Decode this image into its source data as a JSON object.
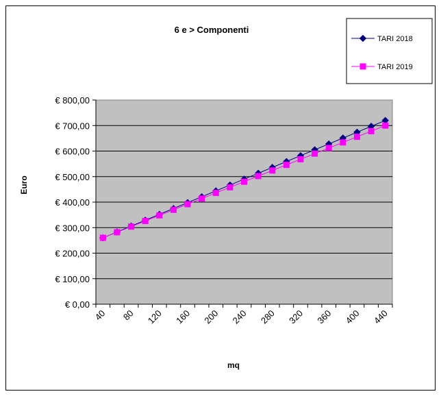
{
  "chart_data": {
    "type": "line",
    "title": "6 e > Componenti",
    "xlabel": "mq",
    "ylabel": "Euro",
    "x": [
      40,
      60,
      80,
      100,
      120,
      140,
      160,
      180,
      200,
      220,
      240,
      260,
      280,
      300,
      320,
      340,
      360,
      380,
      400,
      420,
      440
    ],
    "x_tick_labels": [
      "40",
      "80",
      "120",
      "160",
      "200",
      "240",
      "280",
      "320",
      "360",
      "400",
      "440"
    ],
    "x_tick_values": [
      40,
      80,
      120,
      160,
      200,
      240,
      280,
      320,
      360,
      400,
      440
    ],
    "ylim": [
      0,
      800
    ],
    "y_ticks": [
      0,
      100,
      200,
      300,
      400,
      500,
      600,
      700,
      800
    ],
    "y_tick_labels": [
      "€ 0,00",
      "€ 100,00",
      "€ 200,00",
      "€ 300,00",
      "€ 400,00",
      "€ 500,00",
      "€ 600,00",
      "€ 700,00",
      "€ 800,00"
    ],
    "grid": true,
    "legend_position": "top-right",
    "series": [
      {
        "name": "TARI 2018",
        "color": "#000080",
        "marker": "diamond",
        "values": [
          260,
          283,
          306,
          329,
          352,
          375,
          398,
          421,
          444,
          467,
          490,
          513,
          536,
          559,
          582,
          605,
          628,
          651,
          674,
          697,
          720
        ]
      },
      {
        "name": "TARI 2019",
        "color": "#ff00ff",
        "marker": "square",
        "values": [
          260,
          282,
          304,
          326,
          348,
          370,
          392,
          414,
          436,
          458,
          480,
          502,
          524,
          546,
          568,
          590,
          612,
          634,
          656,
          678,
          700
        ]
      }
    ]
  }
}
